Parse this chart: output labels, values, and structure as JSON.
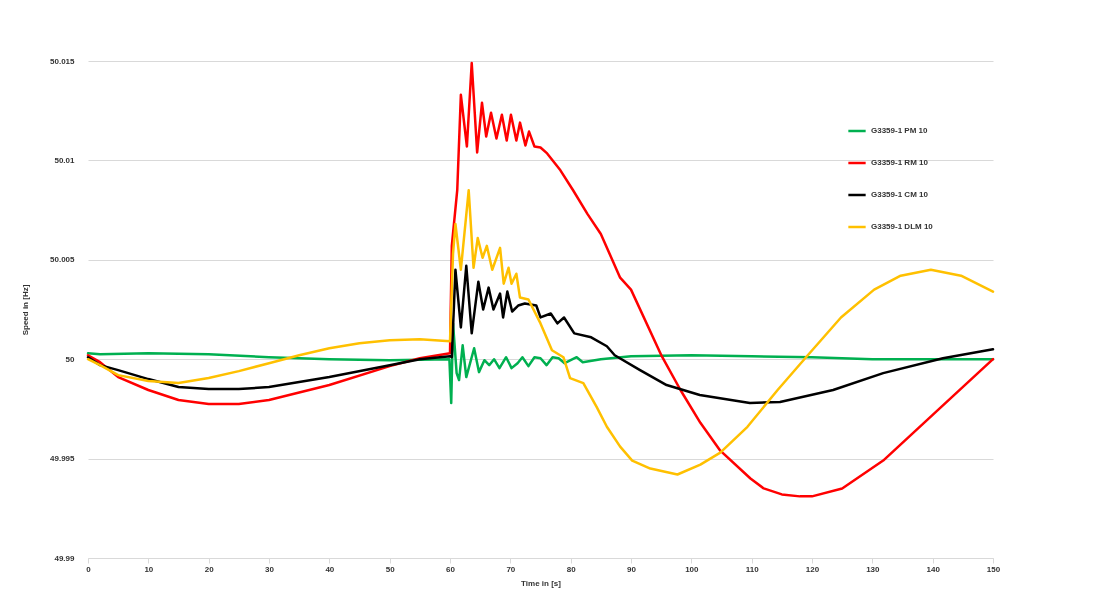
{
  "chart_data": {
    "type": "line",
    "xlabel": "Time in [s]",
    "ylabel": "Speed in [Hz]",
    "xlim": [
      0,
      150
    ],
    "xticks": [
      0,
      10,
      20,
      30,
      40,
      50,
      60,
      70,
      80,
      90,
      100,
      110,
      120,
      130,
      140,
      150
    ],
    "ylim": [
      49.99,
      50.015
    ],
    "yticks": [
      49.99,
      49.995,
      50,
      50.005,
      50.01,
      50.015
    ],
    "grid": "y",
    "legend": "top right",
    "line_style": "solid",
    "series": [
      {
        "name": "G3359-1 PM 10",
        "color": "#00b050",
        "x": [
          0,
          2,
          10,
          20,
          30,
          40,
          50,
          59.9,
          60.2,
          60.5,
          61.1,
          61.5,
          62.1,
          62.7,
          64,
          64.8,
          65.7,
          66.5,
          67.3,
          68.2,
          69.3,
          70.2,
          71.2,
          72,
          73,
          74,
          75,
          76,
          77,
          78,
          79,
          81,
          82,
          85,
          90,
          100,
          110,
          120,
          130,
          140,
          150
        ],
        "values": [
          50.0003,
          50.00025,
          50.0003,
          50.00025,
          50.0001,
          50.0,
          49.99995,
          50.0,
          49.9978,
          50.0018,
          49.9993,
          49.99895,
          50.0007,
          49.9991,
          50.00055,
          49.99935,
          49.99995,
          49.9997,
          50.0,
          49.99955,
          50.0001,
          49.99955,
          49.9998,
          50.0001,
          49.99965,
          50.0001,
          50.00005,
          49.9997,
          50.0001,
          50.00005,
          49.9998,
          50.0001,
          49.99985,
          50.0,
          50.00015,
          50.0002,
          50.00015,
          50.0001,
          50.0,
          50.0,
          50.0
        ]
      },
      {
        "name": "G3359-1 RM 10",
        "color": "#ff0000",
        "x": [
          0,
          2,
          5,
          10,
          15,
          20,
          25,
          30,
          40,
          50,
          55,
          60,
          60.3,
          61.2,
          61.8,
          62.8,
          63.6,
          64.5,
          65.3,
          66,
          66.8,
          67.7,
          68.6,
          69.4,
          70.1,
          71,
          71.6,
          72.5,
          73.1,
          74,
          75,
          76.1,
          78.3,
          80.4,
          82.8,
          85,
          88.2,
          90,
          95.1,
          98.2,
          101.5,
          104.8,
          109.8,
          112,
          115,
          118,
          120,
          125,
          131.8,
          140,
          150
        ],
        "values": [
          50.0002,
          49.99985,
          49.9991,
          49.99845,
          49.99795,
          49.99775,
          49.99775,
          49.99795,
          49.9987,
          49.99965,
          50.00005,
          50.0003,
          50.0057,
          50.0085,
          50.0133,
          50.0107,
          50.0149,
          50.0104,
          50.0129,
          50.0112,
          50.0124,
          50.0111,
          50.0123,
          50.011,
          50.0123,
          50.011,
          50.0119,
          50.01075,
          50.01145,
          50.0107,
          50.01065,
          50.01035,
          50.0095,
          50.0085,
          50.0073,
          50.0063,
          50.0041,
          50.0035,
          50.00015,
          49.99845,
          49.9968,
          49.9954,
          49.994,
          49.9935,
          49.9932,
          49.9931,
          49.9931,
          49.9935,
          49.9949,
          49.9972,
          50.0
        ]
      },
      {
        "name": "G3359-1 CM 10",
        "color": "#000000",
        "x": [
          0,
          2,
          5,
          10,
          15,
          20,
          25,
          30,
          40,
          50,
          55,
          60,
          60.3,
          60.9,
          61.8,
          62.7,
          63.6,
          64.7,
          65.5,
          66.4,
          67.2,
          68.3,
          68.8,
          69.5,
          70.3,
          71.3,
          72.4,
          74.3,
          75,
          76.7,
          77.8,
          78.9,
          80.6,
          83.4,
          86,
          87.3,
          91.5,
          95.9,
          101.4,
          109.7,
          114.7,
          123.5,
          131.8,
          141.7,
          150
        ],
        "values": [
          50.0001,
          49.9997,
          49.99945,
          49.999,
          49.9986,
          49.9985,
          49.9985,
          49.9986,
          49.9991,
          49.9997,
          50.0,
          50.00015,
          50.0001,
          50.0045,
          50.0016,
          50.0047,
          50.0013,
          50.0039,
          50.0025,
          50.0036,
          50.0025,
          50.0033,
          50.0021,
          50.0034,
          50.0024,
          50.0027,
          50.0028,
          50.0027,
          50.0021,
          50.0023,
          50.0018,
          50.0021,
          50.0013,
          50.0011,
          50.00065,
          50.0002,
          49.99945,
          49.9987,
          49.9982,
          49.9978,
          49.99785,
          49.99845,
          49.9993,
          50.00005,
          50.0005
        ]
      },
      {
        "name": "G3359-1 DLM 10",
        "color": "#ffc000",
        "x": [
          0,
          2,
          5,
          10,
          15,
          20,
          25,
          30,
          35,
          40,
          45,
          50,
          55,
          60,
          60.5,
          60.9,
          61.8,
          63.1,
          63.9,
          64.6,
          65.4,
          66.1,
          67,
          68.3,
          68.9,
          69.7,
          70.2,
          71,
          71.6,
          73,
          75,
          76.9,
          78.8,
          79.9,
          82.1,
          84.3,
          86,
          88.2,
          90.2,
          93.2,
          97.7,
          101.5,
          104.8,
          109.3,
          114.3,
          119.3,
          124.8,
          130.3,
          134.7,
          139.7,
          144.7,
          150
        ],
        "values": [
          50.0,
          49.9997,
          49.9992,
          49.9989,
          49.9988,
          49.99905,
          49.9994,
          49.9998,
          50.0002,
          50.00055,
          50.0008,
          50.00095,
          50.001,
          50.0009,
          50.0053,
          50.0068,
          50.0045,
          50.0085,
          50.0046,
          50.0061,
          50.0051,
          50.0057,
          50.0045,
          50.0056,
          50.0038,
          50.0046,
          50.0038,
          50.0043,
          50.0031,
          50.003,
          50.0018,
          50.00045,
          50.0001,
          49.99905,
          49.9988,
          49.9976,
          49.9966,
          49.9956,
          49.9949,
          49.9945,
          49.9942,
          49.9947,
          49.9953,
          49.9966,
          49.99845,
          50.0002,
          50.0021,
          50.0035,
          50.0042,
          50.0045,
          50.0042,
          50.0034
        ]
      }
    ]
  }
}
